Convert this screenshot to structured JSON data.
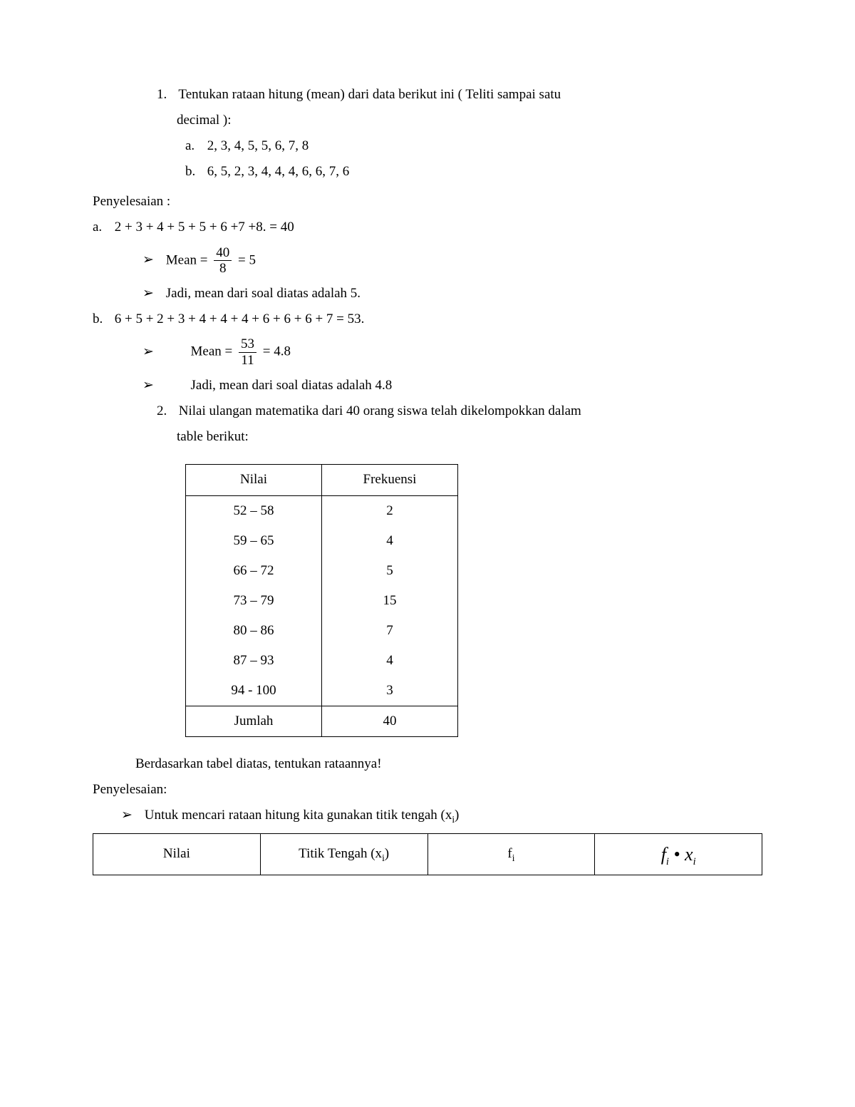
{
  "q1": {
    "num": "1.",
    "text_line1": "Tentukan rataan hitung (mean) dari data berikut ini ( Teliti sampai satu",
    "text_line2": "decimal ):",
    "a_label": "a.",
    "a_data": "2, 3, 4, 5, 5, 6, 7, 8",
    "b_label": "b.",
    "b_data": "6, 5, 2, 3, 4, 4, 4, 6, 6, 7, 6"
  },
  "penyelesaian_label": "Penyelesaian :",
  "sol_a": {
    "label": "a.",
    "sum_expr": "2 + 3 + 4 + 5 + 5 + 6 +7 +8. = 40",
    "mean_label": "Mean =",
    "frac_num": "40",
    "frac_den": "8",
    "eq_result": "= 5",
    "conclusion": "Jadi, mean dari soal diatas adalah 5."
  },
  "sol_b": {
    "label": "b.",
    "sum_expr": "6 + 5 + 2 + 3 + 4 + 4 + 4 + 6 + 6 + 6 + 7 = 53.",
    "mean_label": "Mean =",
    "frac_num": "53",
    "frac_den": "11",
    "eq_result": "= 4.8",
    "conclusion": "Jadi, mean dari soal diatas adalah 4.8"
  },
  "q2": {
    "num": "2.",
    "text_line1": "Nilai ulangan matematika dari 40 orang siswa telah dikelompokkan dalam",
    "text_line2": "table berikut:"
  },
  "freq_table": {
    "head_nilai": "Nilai",
    "head_frek": "Frekuensi",
    "rows": [
      {
        "nilai": "52 – 58",
        "f": "2"
      },
      {
        "nilai": "59 – 65",
        "f": "4"
      },
      {
        "nilai": "66 – 72",
        "f": "5"
      },
      {
        "nilai": "73 – 79",
        "f": "15"
      },
      {
        "nilai": "80 – 86",
        "f": "7"
      },
      {
        "nilai": "87 – 93",
        "f": "4"
      },
      {
        "nilai": "94 - 100",
        "f": "3"
      }
    ],
    "foot_label": "Jumlah",
    "foot_total": "40"
  },
  "q2_after": "Berdasarkan tabel diatas, tentukan rataannya!",
  "penyelesaian2_label": "Penyelesaian:",
  "step1": "Untuk mencari rataan hitung kita gunakan titik tengah (x",
  "step1_sub": "i",
  "step1_close": ")",
  "wide_table": {
    "h1": "Nilai",
    "h2_a": "Titik Tengah (x",
    "h2_sub": "i",
    "h2_b": ")",
    "h3_a": "f",
    "h3_sub": "i"
  },
  "arrow_glyph": "➢"
}
